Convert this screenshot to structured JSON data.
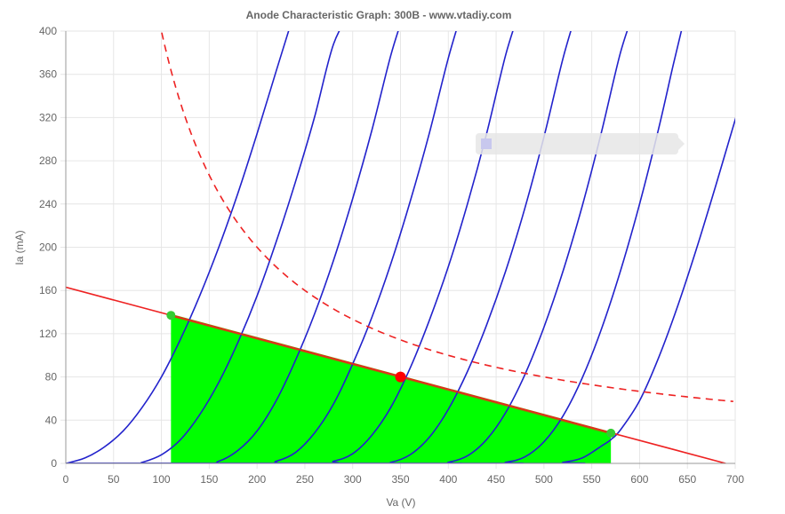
{
  "chart_data": {
    "type": "line",
    "title": "Anode Characteristic Graph: 300B - www.vtadiy.com",
    "xlabel": "Va (V)",
    "ylabel": "Ia (mA)",
    "xlim": [
      0,
      700
    ],
    "ylim": [
      0,
      400
    ],
    "x_ticks": [
      0,
      50,
      100,
      150,
      200,
      250,
      300,
      350,
      400,
      450,
      500,
      550,
      600,
      650,
      700
    ],
    "y_ticks": [
      0,
      40,
      80,
      120,
      160,
      200,
      240,
      280,
      320,
      360,
      400
    ],
    "grid": true,
    "colors": {
      "curves": "#2222cc",
      "load_line": "#ee2222",
      "power_limit": "#ee2222",
      "swing_area": "#00ff00",
      "swing_border": "#888800",
      "operating_point": "#ff0000",
      "swing_endpoints": "#33cc33",
      "grid": "#e6e6e6",
      "axis": "#999999",
      "text": "#666666"
    },
    "series": [
      {
        "points": [
          [
            0,
            0
          ],
          [
            20,
            5
          ],
          [
            40,
            15
          ],
          [
            60,
            30
          ],
          [
            80,
            52
          ],
          [
            100,
            80
          ],
          [
            120,
            115
          ],
          [
            140,
            155
          ],
          [
            160,
            200
          ],
          [
            180,
            250
          ],
          [
            200,
            305
          ],
          [
            220,
            363
          ],
          [
            240,
            420
          ]
        ]
      },
      {
        "points": [
          [
            0,
            0
          ],
          [
            70,
            0
          ],
          [
            80,
            1
          ],
          [
            100,
            8
          ],
          [
            120,
            22
          ],
          [
            140,
            45
          ],
          [
            160,
            75
          ],
          [
            180,
            112
          ],
          [
            200,
            155
          ],
          [
            220,
            205
          ],
          [
            240,
            260
          ],
          [
            260,
            320
          ],
          [
            280,
            388
          ],
          [
            300,
            420
          ]
        ]
      },
      {
        "points": [
          [
            0,
            0
          ],
          [
            140,
            0
          ],
          [
            160,
            2
          ],
          [
            180,
            12
          ],
          [
            200,
            30
          ],
          [
            220,
            58
          ],
          [
            240,
            95
          ],
          [
            260,
            138
          ],
          [
            280,
            188
          ],
          [
            300,
            245
          ],
          [
            320,
            308
          ],
          [
            340,
            378
          ],
          [
            355,
            420
          ]
        ]
      },
      {
        "points": [
          [
            0,
            0
          ],
          [
            200,
            0
          ],
          [
            220,
            2
          ],
          [
            240,
            10
          ],
          [
            260,
            28
          ],
          [
            280,
            55
          ],
          [
            300,
            92
          ],
          [
            320,
            135
          ],
          [
            340,
            185
          ],
          [
            360,
            242
          ],
          [
            380,
            305
          ],
          [
            400,
            375
          ],
          [
            415,
            420
          ]
        ]
      },
      {
        "points": [
          [
            0,
            0
          ],
          [
            260,
            0
          ],
          [
            280,
            2
          ],
          [
            300,
            9
          ],
          [
            320,
            26
          ],
          [
            340,
            52
          ],
          [
            360,
            88
          ],
          [
            380,
            132
          ],
          [
            400,
            182
          ],
          [
            420,
            240
          ],
          [
            440,
            305
          ],
          [
            460,
            378
          ],
          [
            475,
            420
          ]
        ]
      },
      {
        "points": [
          [
            0,
            0
          ],
          [
            320,
            0
          ],
          [
            340,
            1
          ],
          [
            360,
            8
          ],
          [
            380,
            24
          ],
          [
            400,
            50
          ],
          [
            420,
            85
          ],
          [
            440,
            128
          ],
          [
            460,
            178
          ],
          [
            480,
            236
          ],
          [
            500,
            302
          ],
          [
            520,
            375
          ],
          [
            535,
            420
          ]
        ]
      },
      {
        "points": [
          [
            0,
            0
          ],
          [
            380,
            0
          ],
          [
            400,
            1
          ],
          [
            420,
            7
          ],
          [
            440,
            22
          ],
          [
            460,
            47
          ],
          [
            480,
            82
          ],
          [
            500,
            126
          ],
          [
            520,
            178
          ],
          [
            540,
            238
          ],
          [
            560,
            306
          ],
          [
            580,
            380
          ],
          [
            595,
            420
          ]
        ]
      },
      {
        "points": [
          [
            0,
            0
          ],
          [
            440,
            0
          ],
          [
            460,
            1
          ],
          [
            480,
            6
          ],
          [
            500,
            20
          ],
          [
            520,
            44
          ],
          [
            540,
            79
          ],
          [
            560,
            124
          ],
          [
            580,
            178
          ],
          [
            600,
            240
          ],
          [
            620,
            310
          ],
          [
            635,
            368
          ],
          [
            645,
            405
          ]
        ]
      },
      {
        "points": [
          [
            0,
            0
          ],
          [
            500,
            0
          ],
          [
            520,
            1
          ],
          [
            540,
            5
          ],
          [
            560,
            16
          ],
          [
            570,
            22
          ],
          [
            580,
            31
          ],
          [
            600,
            58
          ],
          [
            620,
            98
          ],
          [
            640,
            146
          ],
          [
            660,
            200
          ],
          [
            680,
            258
          ],
          [
            700,
            318
          ],
          [
            705,
            330
          ]
        ]
      }
    ],
    "load_line": {
      "points": [
        [
          0,
          163
        ],
        [
          690,
          0
        ]
      ]
    },
    "power_limit": {
      "power_w": 40
    },
    "operating_point": {
      "x": 350,
      "y": 80
    },
    "swing": {
      "x_min": 110,
      "y_min_at": 137,
      "x_max": 570,
      "y_max_at": 28
    }
  }
}
